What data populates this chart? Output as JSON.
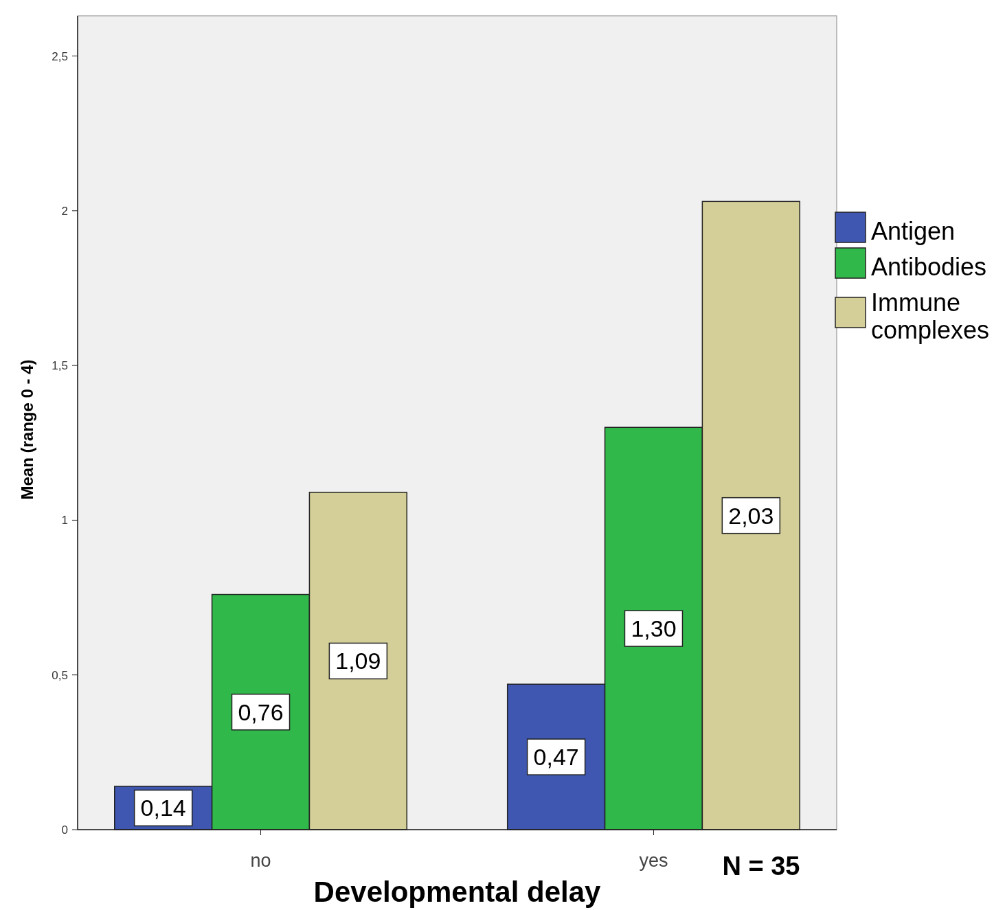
{
  "chart_data": {
    "type": "bar",
    "xlabel": "Developmental delay",
    "ylabel": "Mean (range 0 - 4)",
    "categories": [
      "no",
      "yes"
    ],
    "series": [
      {
        "name": "Antigen",
        "color": "#3f57b0",
        "values": [
          0.14,
          0.47
        ],
        "value_labels": [
          "0,14",
          "0,47"
        ]
      },
      {
        "name": "Antibodies",
        "color": "#31b84a",
        "values": [
          0.76,
          1.3
        ],
        "value_labels": [
          "0,76",
          "1,30"
        ]
      },
      {
        "name": "Immune complexes",
        "color": "#d4cf98",
        "values": [
          1.09,
          2.03
        ],
        "value_labels": [
          "1,09",
          "2,03"
        ]
      }
    ],
    "ylim": [
      0,
      2.63
    ],
    "yticks": [
      0,
      {
        "value": 0.5,
        "label": "0,5"
      },
      1,
      {
        "value": 1.5,
        "label": "1,5"
      },
      2,
      {
        "value": 2.5,
        "label": "2,5"
      }
    ],
    "grid": false,
    "legend": "right",
    "annotations": [
      "N = 35"
    ]
  }
}
